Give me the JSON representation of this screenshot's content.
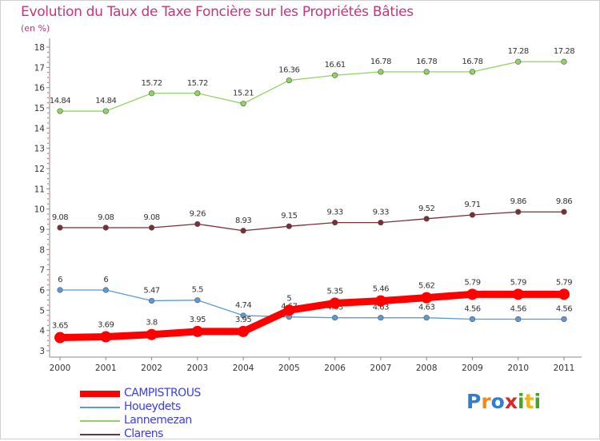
{
  "title": "Evolution du Taux de Taxe Foncière sur les Propriétés Bâties",
  "unit": "(en %)",
  "brand": {
    "letters": [
      {
        "ch": "P",
        "color": "#2f7fd0"
      },
      {
        "ch": "r",
        "color": "#f08a1c"
      },
      {
        "ch": "o",
        "color": "#2f7fd0"
      },
      {
        "ch": "x",
        "color": "#d62a2a"
      },
      {
        "ch": "i",
        "color": "#4aa02c"
      },
      {
        "ch": "t",
        "color": "#f0b31c"
      },
      {
        "ch": "i",
        "color": "#4aa02c"
      }
    ]
  },
  "chart_data": {
    "type": "line",
    "x": [
      "2000",
      "2001",
      "2002",
      "2003",
      "2004",
      "2005",
      "2006",
      "2007",
      "2008",
      "2009",
      "2010",
      "2011"
    ],
    "ylim": [
      3,
      18
    ],
    "yticks": [
      "3",
      "4",
      "5",
      "6",
      "7",
      "8",
      "9",
      "10",
      "11",
      "12",
      "13",
      "14",
      "15",
      "16",
      "17",
      "18"
    ],
    "grid": false,
    "legend_position": "bottom-left",
    "series": [
      {
        "name": "Lannemezan",
        "color": "#8fd460",
        "point_color": "#8fd460",
        "values": [
          14.84,
          14.84,
          15.72,
          15.72,
          15.21,
          16.36,
          16.61,
          16.78,
          16.78,
          16.78,
          17.28,
          17.28
        ],
        "labels": [
          "14.84",
          "14.84",
          "15.72",
          "15.72",
          "15.21",
          "16.36",
          "16.61",
          "16.78",
          "16.78",
          "16.78",
          "17.28",
          "17.28"
        ]
      },
      {
        "name": "Clarens",
        "color": "#7a2f35",
        "point_color": "#7a2f35",
        "values": [
          9.08,
          9.08,
          9.08,
          9.26,
          8.93,
          9.15,
          9.33,
          9.33,
          9.52,
          9.71,
          9.86,
          9.86
        ],
        "labels": [
          "9.08",
          "9.08",
          "9.08",
          "9.26",
          "8.93",
          "9.15",
          "9.33",
          "9.33",
          "9.52",
          "9.71",
          "9.86",
          "9.86"
        ]
      },
      {
        "name": "Houeydets",
        "color": "#5b9bd5",
        "point_color": "#5b9bd5",
        "values": [
          6,
          6,
          5.47,
          5.5,
          4.74,
          4.67,
          4.63,
          4.63,
          4.63,
          4.56,
          4.56,
          4.56
        ],
        "labels": [
          "6",
          "6",
          "5.47",
          "5.5",
          "4.74",
          "4.67",
          "4.63",
          "4.63",
          "4.63",
          "4.56",
          "4.56",
          "4.56"
        ]
      },
      {
        "name": "CAMPISTROUS",
        "color": "#ff0000",
        "point_color": "#ff0000",
        "values": [
          3.65,
          3.69,
          3.8,
          3.95,
          3.95,
          5,
          5.35,
          5.46,
          5.62,
          5.79,
          5.79,
          5.79
        ],
        "labels": [
          "3.65",
          "3.69",
          "3.8",
          "3.95",
          "3.95",
          "5",
          "5.35",
          "5.46",
          "5.62",
          "5.79",
          "5.79",
          "5.79"
        ]
      }
    ],
    "legend": [
      {
        "name": "CAMPISTROUS",
        "color": "#ff0000",
        "text_color": "#3b3bff"
      },
      {
        "name": "Houeydets",
        "color": "#5b9bd5",
        "text_color": "#3b3bff"
      },
      {
        "name": "Lannemezan",
        "color": "#8fd460",
        "text_color": "#3b3bff"
      },
      {
        "name": "Clarens",
        "color": "#7a2f35",
        "text_color": "#3b3bff"
      }
    ]
  }
}
